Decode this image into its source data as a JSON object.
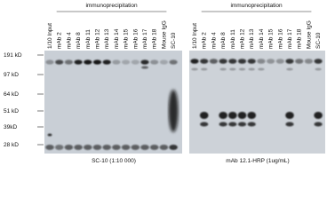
{
  "panels": [
    {
      "title": "immunoprecipitation",
      "lanes": [
        "1/10 Input",
        "mAb 2",
        "mAb 4",
        "mAb 8",
        "mAb 11",
        "mAb 12",
        "mAb 13",
        "mAb 14",
        "mAb 15",
        "mAb 16",
        "mAb 17",
        "mAb 18",
        "Mouse IgG",
        "SC-10"
      ],
      "caption": "SC-10 (1:10 000)"
    },
    {
      "title": "immunoprecipitation",
      "lanes": [
        "1/10 Input",
        "mAb 2",
        "mAb 4",
        "mAb 8",
        "mAb 11",
        "mAb 12",
        "mAb 13",
        "mAb 14",
        "mAb 15",
        "mAb 16",
        "mAb 17",
        "mAb 18",
        "Mouse IgG",
        "SC-10"
      ],
      "caption": "mAb 12.1-HRP (1ug/mL)"
    }
  ],
  "markers": [
    "191 kD",
    "97 kD",
    "64 kD",
    "51 kD",
    "39kD",
    "28 kD"
  ]
}
